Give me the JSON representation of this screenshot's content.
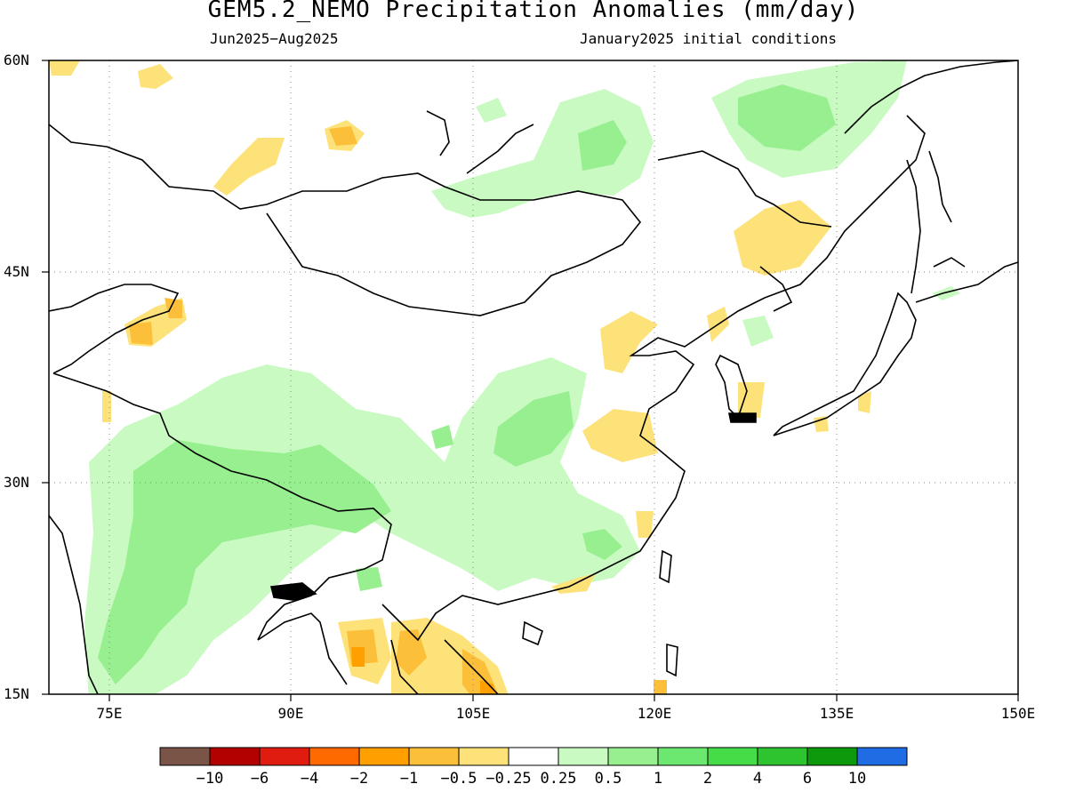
{
  "header": {
    "title": "GEM5.2_NEMO Precipitation Anomalies (mm/day)",
    "period": "Jun2025−Aug2025",
    "init": "January2025 initial conditions"
  },
  "axes": {
    "lat_labels": [
      "60N",
      "45N",
      "30N",
      "15N"
    ],
    "lon_labels": [
      "75E",
      "90E",
      "105E",
      "120E",
      "135E",
      "150E"
    ],
    "lat_range": [
      15,
      60
    ],
    "lon_range": [
      70,
      150
    ],
    "grid": "dotted"
  },
  "colorbar": {
    "colors": [
      "#7b5448",
      "#b30000",
      "#e01b10",
      "#ff6a00",
      "#ff9f00",
      "#fcbf3a",
      "#fde27a",
      "#ffffff",
      "#c8fac2",
      "#97ef8f",
      "#6ce870",
      "#45dc48",
      "#2ec42f",
      "#0c9a0c",
      "#206ce4"
    ],
    "labels": [
      "−10",
      "−6",
      "−4",
      "−2",
      "−1",
      "−0.5",
      "−0.25",
      "0.25",
      "0.5",
      "1",
      "2",
      "4",
      "6",
      "10"
    ]
  }
}
